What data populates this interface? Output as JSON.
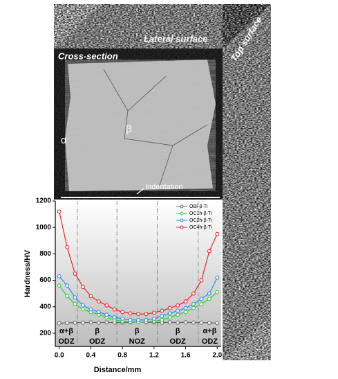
{
  "labels": {
    "lateral": "Lateral surface",
    "top": "Top surface",
    "cross": "Cross-section",
    "beta": "β",
    "alpha": "α",
    "indent": "Indentation"
  },
  "chart_data": {
    "type": "line",
    "xlabel": "Distance/mm",
    "ylabel": "Hardness/HV",
    "x": [
      0,
      0.1,
      0.2,
      0.3,
      0.4,
      0.5,
      0.6,
      0.7,
      0.8,
      0.9,
      1.0,
      1.1,
      1.2,
      1.3,
      1.4,
      1.5,
      1.6,
      1.7,
      1.8,
      1.9,
      2.0
    ],
    "series": [
      {
        "name": "OBI-β-Ti",
        "color": "#666666",
        "values": [
          275,
          278,
          280,
          280,
          282,
          280,
          282,
          280,
          280,
          282,
          285,
          282,
          282,
          280,
          282,
          280,
          282,
          280,
          280,
          278,
          276
        ]
      },
      {
        "name": "OC1h-β-Ti",
        "color": "#2fc940",
        "values": [
          560,
          480,
          420,
          380,
          360,
          340,
          320,
          300,
          290,
          285,
          285,
          285,
          290,
          300,
          320,
          340,
          360,
          390,
          420,
          460,
          510
        ]
      },
      {
        "name": "OC2h-β-Ti",
        "color": "#1e8fe6",
        "values": [
          630,
          560,
          470,
          410,
          380,
          360,
          340,
          320,
          310,
          300,
          300,
          300,
          310,
          330,
          350,
          370,
          390,
          420,
          460,
          500,
          620
        ]
      },
      {
        "name": "OC4h-β-Ti",
        "color": "#e3262b",
        "values": [
          1120,
          850,
          650,
          550,
          480,
          440,
          410,
          380,
          360,
          350,
          345,
          345,
          355,
          370,
          390,
          410,
          440,
          500,
          600,
          820,
          950
        ]
      }
    ],
    "xlim": [
      -0.05,
      2.05
    ],
    "ylim": [
      100,
      1200
    ],
    "xticks": [
      {
        "value": 0,
        "label": "0.0"
      },
      0.4,
      0.8,
      1.2,
      1.6,
      {
        "value": 2,
        "label": "2.0"
      }
    ],
    "yticks": [
      200,
      400,
      600,
      800,
      1000,
      1200
    ],
    "zone_lines": [
      0.23,
      0.73,
      1.24,
      1.76
    ],
    "zones": [
      {
        "top": "α+β",
        "bottom": "ODZ"
      },
      {
        "top": "β",
        "bottom": "ODZ"
      },
      {
        "top": "β",
        "bottom": "NOZ"
      },
      {
        "top": "β",
        "bottom": "ODZ"
      },
      {
        "top": "α+β",
        "bottom": "ODZ"
      }
    ],
    "legend": "upper right"
  }
}
